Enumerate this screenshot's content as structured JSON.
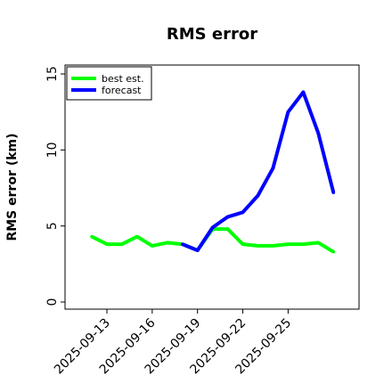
{
  "chart_data": {
    "type": "line",
    "title": "RMS error",
    "xlabel": "",
    "ylabel": "RMS error (km)",
    "ylim": [
      0,
      15
    ],
    "yticks": [
      0,
      5,
      10,
      15
    ],
    "xticks": [
      "2025-09-13",
      "2025-09-16",
      "2025-09-19",
      "2025-09-22",
      "2025-09-25"
    ],
    "legend_position": "top-left",
    "grid": false,
    "series": [
      {
        "name": "best est.",
        "color": "#00ff00",
        "points": [
          {
            "x": "2025-09-12",
            "y": 4.3
          },
          {
            "x": "2025-09-13",
            "y": 3.8
          },
          {
            "x": "2025-09-14",
            "y": 3.8
          },
          {
            "x": "2025-09-15",
            "y": 4.3
          },
          {
            "x": "2025-09-16",
            "y": 3.7
          },
          {
            "x": "2025-09-17",
            "y": 3.9
          },
          {
            "x": "2025-09-18",
            "y": 3.8
          },
          {
            "x": "2025-09-19",
            "y": 3.4
          },
          {
            "x": "2025-09-20",
            "y": 4.8
          },
          {
            "x": "2025-09-21",
            "y": 4.8
          },
          {
            "x": "2025-09-22",
            "y": 3.8
          },
          {
            "x": "2025-09-23",
            "y": 3.7
          },
          {
            "x": "2025-09-24",
            "y": 3.7
          },
          {
            "x": "2025-09-25",
            "y": 3.8
          },
          {
            "x": "2025-09-26",
            "y": 3.8
          },
          {
            "x": "2025-09-27",
            "y": 3.9
          },
          {
            "x": "2025-09-28",
            "y": 3.3
          }
        ]
      },
      {
        "name": "forecast",
        "color": "#0000ff",
        "points": [
          {
            "x": "2025-09-18",
            "y": 3.8
          },
          {
            "x": "2025-09-19",
            "y": 3.4
          },
          {
            "x": "2025-09-20",
            "y": 4.9
          },
          {
            "x": "2025-09-21",
            "y": 5.6
          },
          {
            "x": "2025-09-22",
            "y": 5.9
          },
          {
            "x": "2025-09-23",
            "y": 7.0
          },
          {
            "x": "2025-09-24",
            "y": 8.8
          },
          {
            "x": "2025-09-25",
            "y": 12.5
          },
          {
            "x": "2025-09-26",
            "y": 13.8
          },
          {
            "x": "2025-09-27",
            "y": 11.1
          },
          {
            "x": "2025-09-28",
            "y": 7.2
          }
        ]
      }
    ]
  }
}
